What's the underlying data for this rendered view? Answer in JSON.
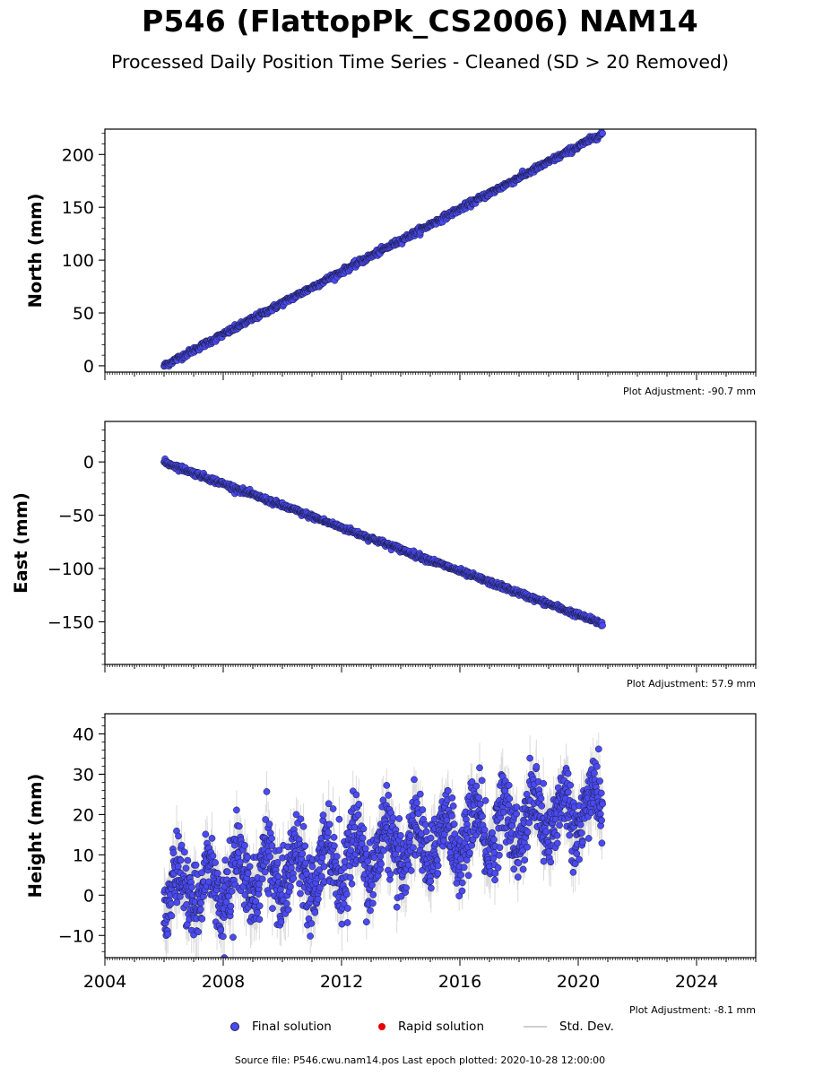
{
  "title": "P546 (FlattopPk_CS2006) NAM14",
  "subtitle": "Processed Daily Position Time Series - Cleaned (SD > 20 Removed)",
  "chart_data": [
    {
      "type": "scatter",
      "panel": "north",
      "ylabel": "North (mm)",
      "xlim": [
        2004,
        2026
      ],
      "ylim": [
        -6,
        224
      ],
      "yticks": [
        0,
        50,
        100,
        150,
        200
      ],
      "xticks": [],
      "adjustment": "Plot Adjustment: -90.7 mm",
      "trend": {
        "start": [
          2006.0,
          0
        ],
        "end": [
          2020.82,
          220
        ]
      },
      "noise_mm": 1.4,
      "series": [
        {
          "name": "Final solution",
          "color": "#4a4af0"
        }
      ]
    },
    {
      "type": "scatter",
      "panel": "east",
      "ylabel": "East (mm)",
      "xlim": [
        2004,
        2026
      ],
      "ylim": [
        -190,
        38
      ],
      "yticks": [
        0,
        -50,
        -100,
        -150
      ],
      "ytick_labels": [
        "0",
        "−50",
        "−100",
        "−150"
      ],
      "xticks": [],
      "adjustment": "Plot Adjustment: 57.9 mm",
      "trend": {
        "start": [
          2006.0,
          0
        ],
        "end": [
          2020.82,
          -152
        ]
      },
      "noise_mm": 1.3,
      "series": [
        {
          "name": "Final solution",
          "color": "#4a4af0"
        }
      ]
    },
    {
      "type": "scatter",
      "panel": "height",
      "ylabel": "Height (mm)",
      "xlim": [
        2004,
        2026
      ],
      "ylim": [
        -15.5,
        45
      ],
      "yticks": [
        -10,
        0,
        10,
        20,
        30,
        40
      ],
      "ytick_labels": [
        "−10",
        "0",
        "10",
        "20",
        "30",
        "40"
      ],
      "xticks": [
        2004,
        2008,
        2012,
        2016,
        2020,
        2024
      ],
      "xtick_labels": [
        "2004",
        "2008",
        "2012",
        "2016",
        "2020",
        "2024"
      ],
      "adjustment": "Plot Adjustment: -8.1 mm",
      "trend": {
        "start": [
          2006.0,
          0
        ],
        "end": [
          2020.82,
          22
        ]
      },
      "seasonal_amplitude_mm": 6,
      "noise_mm": 4.5,
      "series": [
        {
          "name": "Final solution",
          "color": "#4a4af0"
        }
      ]
    }
  ],
  "legend": {
    "final": "Final solution",
    "rapid": "Rapid solution",
    "std": "Std. Dev.",
    "final_color": "#4a4af0",
    "rapid_color": "#e60000",
    "std_color": "#cfcfcf"
  },
  "source": "Source file: P546.cwu.nam14.pos  Last epoch plotted: 2020-10-28 12:00:00"
}
